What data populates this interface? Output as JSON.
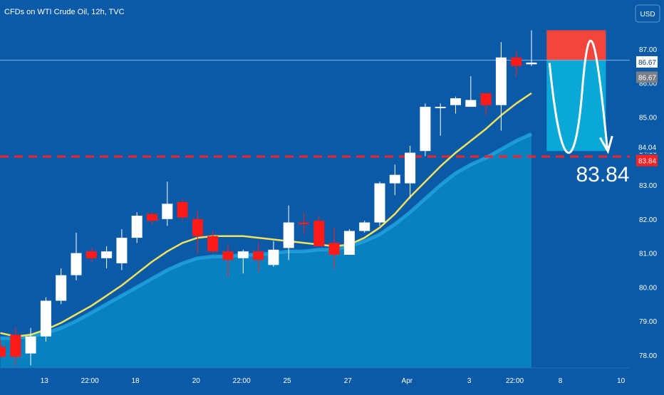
{
  "header": {
    "title": "CFDs on WTI Crude Oil, 12h, TVC"
  },
  "currency_button": {
    "label": "USD"
  },
  "colors": {
    "background": "#0a5aa8",
    "up_candle": "#ffffff",
    "down_candle": "#ff1a1a",
    "ma_line": "#f2e35a",
    "area_fill": "#0a8fc9",
    "target_line": "#ff2020",
    "stop_zone": "#f2463c",
    "profit_zone": "#0aa8d6"
  },
  "chart_data": {
    "type": "candlestick",
    "title": "CFDs on WTI Crude Oil, 12h, TVC",
    "ylim": [
      77.5,
      87.6
    ],
    "y_ticks": [
      "78.00",
      "79.00",
      "80.00",
      "81.00",
      "82.00",
      "83.00",
      "84.00",
      "85.00",
      "86.00",
      "87.00"
    ],
    "x_tick_labels": [
      {
        "label": "13",
        "index": 2.9
      },
      {
        "label": "22:00",
        "index": 5.9
      },
      {
        "label": "18",
        "index": 8.9
      },
      {
        "label": "20",
        "index": 12.9
      },
      {
        "label": "22:00",
        "index": 15.9
      },
      {
        "label": "25",
        "index": 18.9
      },
      {
        "label": "27",
        "index": 22.9
      },
      {
        "label": "Apr",
        "index": 26.8
      },
      {
        "label": "3",
        "index": 30.9
      },
      {
        "label": "22:00",
        "index": 33.9
      },
      {
        "label": "8",
        "index": 36.9
      },
      {
        "label": "10",
        "index": 40.9
      }
    ],
    "candles": [
      {
        "o": 78.25,
        "h": 78.45,
        "l": 78.0,
        "c": 77.95
      },
      {
        "o": 78.6,
        "h": 78.8,
        "l": 77.7,
        "c": 77.95
      },
      {
        "o": 78.05,
        "h": 78.8,
        "l": 77.7,
        "c": 78.55
      },
      {
        "o": 78.55,
        "h": 79.7,
        "l": 78.4,
        "c": 79.6
      },
      {
        "o": 79.6,
        "h": 80.55,
        "l": 79.5,
        "c": 80.35
      },
      {
        "o": 80.35,
        "h": 81.6,
        "l": 80.2,
        "c": 81.0
      },
      {
        "o": 81.05,
        "h": 81.15,
        "l": 80.75,
        "c": 80.85
      },
      {
        "o": 80.85,
        "h": 81.2,
        "l": 80.55,
        "c": 81.05
      },
      {
        "o": 80.7,
        "h": 81.7,
        "l": 80.5,
        "c": 81.45
      },
      {
        "o": 81.45,
        "h": 82.2,
        "l": 81.3,
        "c": 82.1
      },
      {
        "o": 82.15,
        "h": 82.2,
        "l": 81.85,
        "c": 81.95
      },
      {
        "o": 82.0,
        "h": 83.1,
        "l": 81.8,
        "c": 82.45
      },
      {
        "o": 82.5,
        "h": 82.6,
        "l": 81.95,
        "c": 82.05
      },
      {
        "o": 82.0,
        "h": 82.25,
        "l": 81.0,
        "c": 81.5
      },
      {
        "o": 81.5,
        "h": 81.65,
        "l": 81.0,
        "c": 81.05
      },
      {
        "o": 81.05,
        "h": 81.25,
        "l": 80.3,
        "c": 80.8
      },
      {
        "o": 80.85,
        "h": 81.1,
        "l": 80.4,
        "c": 81.05
      },
      {
        "o": 81.05,
        "h": 81.3,
        "l": 80.45,
        "c": 80.8
      },
      {
        "o": 80.65,
        "h": 81.35,
        "l": 80.6,
        "c": 81.1
      },
      {
        "o": 81.15,
        "h": 82.4,
        "l": 80.8,
        "c": 81.9
      },
      {
        "o": 81.9,
        "h": 82.2,
        "l": 81.55,
        "c": 81.85
      },
      {
        "o": 81.95,
        "h": 82.1,
        "l": 81.2,
        "c": 81.2
      },
      {
        "o": 81.3,
        "h": 81.75,
        "l": 80.55,
        "c": 80.95
      },
      {
        "o": 80.95,
        "h": 81.7,
        "l": 80.95,
        "c": 81.65
      },
      {
        "o": 81.65,
        "h": 81.95,
        "l": 81.6,
        "c": 81.9
      },
      {
        "o": 81.9,
        "h": 83.1,
        "l": 81.8,
        "c": 83.05
      },
      {
        "o": 83.05,
        "h": 83.6,
        "l": 82.7,
        "c": 83.3
      },
      {
        "o": 83.05,
        "h": 84.15,
        "l": 82.6,
        "c": 83.95
      },
      {
        "o": 84.0,
        "h": 85.4,
        "l": 83.85,
        "c": 85.3
      },
      {
        "o": 85.3,
        "h": 85.4,
        "l": 84.45,
        "c": 85.3
      },
      {
        "o": 85.35,
        "h": 85.6,
        "l": 85.1,
        "c": 85.55
      },
      {
        "o": 85.3,
        "h": 86.2,
        "l": 85.3,
        "c": 85.5
      },
      {
        "o": 85.7,
        "h": 85.7,
        "l": 85.05,
        "c": 85.35
      },
      {
        "o": 85.35,
        "h": 87.2,
        "l": 84.6,
        "c": 86.75
      },
      {
        "o": 86.75,
        "h": 86.95,
        "l": 86.2,
        "c": 86.5
      },
      {
        "o": 86.55,
        "h": 87.55,
        "l": 86.5,
        "c": 86.6
      }
    ],
    "ma_line": [
      78.65,
      78.55,
      78.6,
      78.75,
      78.95,
      79.2,
      79.45,
      79.75,
      80.05,
      80.4,
      80.75,
      81.05,
      81.3,
      81.45,
      81.5,
      81.5,
      81.5,
      81.45,
      81.4,
      81.35,
      81.3,
      81.25,
      81.2,
      81.25,
      81.45,
      81.75,
      82.15,
      82.65,
      83.1,
      83.55,
      83.95,
      84.3,
      84.65,
      85.05,
      85.4,
      85.7
    ],
    "area_series": [
      78.5,
      78.5,
      78.55,
      78.65,
      78.8,
      79.0,
      79.25,
      79.5,
      79.75,
      80.0,
      80.25,
      80.5,
      80.7,
      80.85,
      80.9,
      80.9,
      80.95,
      80.95,
      81.0,
      81.05,
      81.05,
      81.1,
      81.1,
      81.2,
      81.35,
      81.55,
      81.85,
      82.2,
      82.6,
      83.0,
      83.35,
      83.6,
      83.8,
      84.05,
      84.3,
      84.5
    ],
    "current_price": 86.67,
    "current_price_labels": [
      "86.67",
      "86.67"
    ],
    "target_level": 83.84,
    "target_label": "83.84",
    "level_label_84": "84.04",
    "stop_zone": {
      "from_index": 36.0,
      "to_index": 39.9,
      "top": 87.55,
      "bottom": 86.67
    },
    "profit_zone": {
      "from_index": 36.0,
      "to_index": 39.9,
      "top": 86.67,
      "bottom": 84.0
    }
  }
}
